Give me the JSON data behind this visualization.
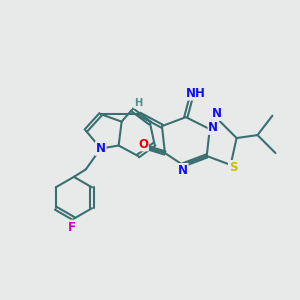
{
  "bg_color": "#e8eaea",
  "bond_color": "#3a7070",
  "bond_lw": 1.5,
  "dbo": 0.06,
  "atom_colors": {
    "N": "#1010ee",
    "S": "#c8c000",
    "O": "#ee0000",
    "F": "#cc00cc",
    "H_teal": "#4a9090",
    "C": "#3a7070"
  },
  "fs": 8.5,
  "fs_small": 7.2,
  "fs_nh": 8.5
}
